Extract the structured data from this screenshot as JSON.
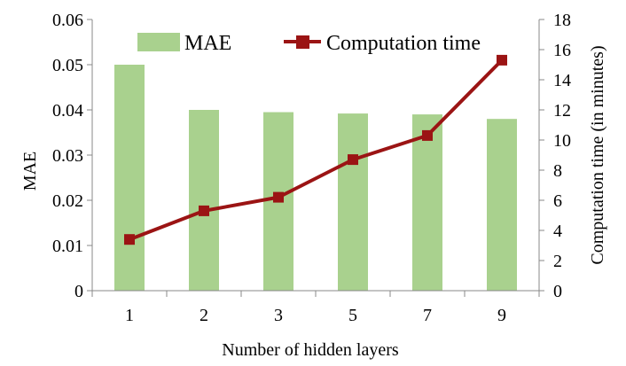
{
  "chart_data": {
    "type": "bar+line",
    "categories": [
      "1",
      "2",
      "3",
      "5",
      "7",
      "9"
    ],
    "series": [
      {
        "name": "MAE",
        "type": "bar",
        "axis": "left",
        "values": [
          0.05,
          0.04,
          0.0395,
          0.0392,
          0.039,
          0.038
        ],
        "color": "#a9d18e"
      },
      {
        "name": "Computation time",
        "type": "line",
        "axis": "right",
        "values": [
          3.4,
          5.3,
          6.2,
          8.7,
          10.3,
          15.3
        ],
        "color": "#9b1414"
      }
    ],
    "xlabel": "Number of hidden layers",
    "ylabel": "MAE",
    "y2label": "Computation time (in minutes)",
    "ylim": [
      0,
      0.06
    ],
    "y2lim": [
      0,
      18
    ],
    "yticks": [
      "0",
      "0.01",
      "0.02",
      "0.03",
      "0.04",
      "0.05",
      "0.06"
    ],
    "y2ticks": [
      "0",
      "2",
      "4",
      "6",
      "8",
      "10",
      "12",
      "14",
      "16",
      "18"
    ],
    "grid": false,
    "legend": "top"
  }
}
